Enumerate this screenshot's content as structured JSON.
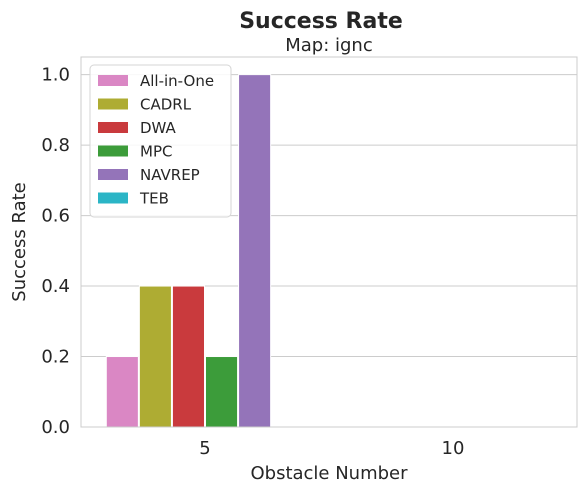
{
  "chart_data": {
    "type": "bar",
    "title": "Success Rate",
    "subtitle": "Map: ignc",
    "xlabel": "Obstacle Number",
    "ylabel": "Success Rate",
    "categories": [
      "5",
      "10"
    ],
    "ylim": [
      0,
      1.05
    ],
    "yticks": [
      0.0,
      0.2,
      0.4,
      0.6,
      0.8,
      1.0
    ],
    "ytick_labels": [
      "0.0",
      "0.2",
      "0.4",
      "0.6",
      "0.8",
      "1.0"
    ],
    "grid": "horizontal",
    "legend_position": "top-left",
    "series": [
      {
        "name": "All-in-One",
        "color": "#da87c4",
        "values": [
          0.2,
          null
        ]
      },
      {
        "name": "CADRL",
        "color": "#aeac33",
        "values": [
          0.4,
          null
        ]
      },
      {
        "name": "DWA",
        "color": "#c93a3d",
        "values": [
          0.4,
          null
        ]
      },
      {
        "name": "MPC",
        "color": "#3c9c3a",
        "values": [
          0.2,
          null
        ]
      },
      {
        "name": "NAVREP",
        "color": "#9474b9",
        "values": [
          1.0,
          null
        ]
      },
      {
        "name": "TEB",
        "color": "#2bb5c6",
        "values": [
          null,
          null
        ]
      }
    ]
  }
}
